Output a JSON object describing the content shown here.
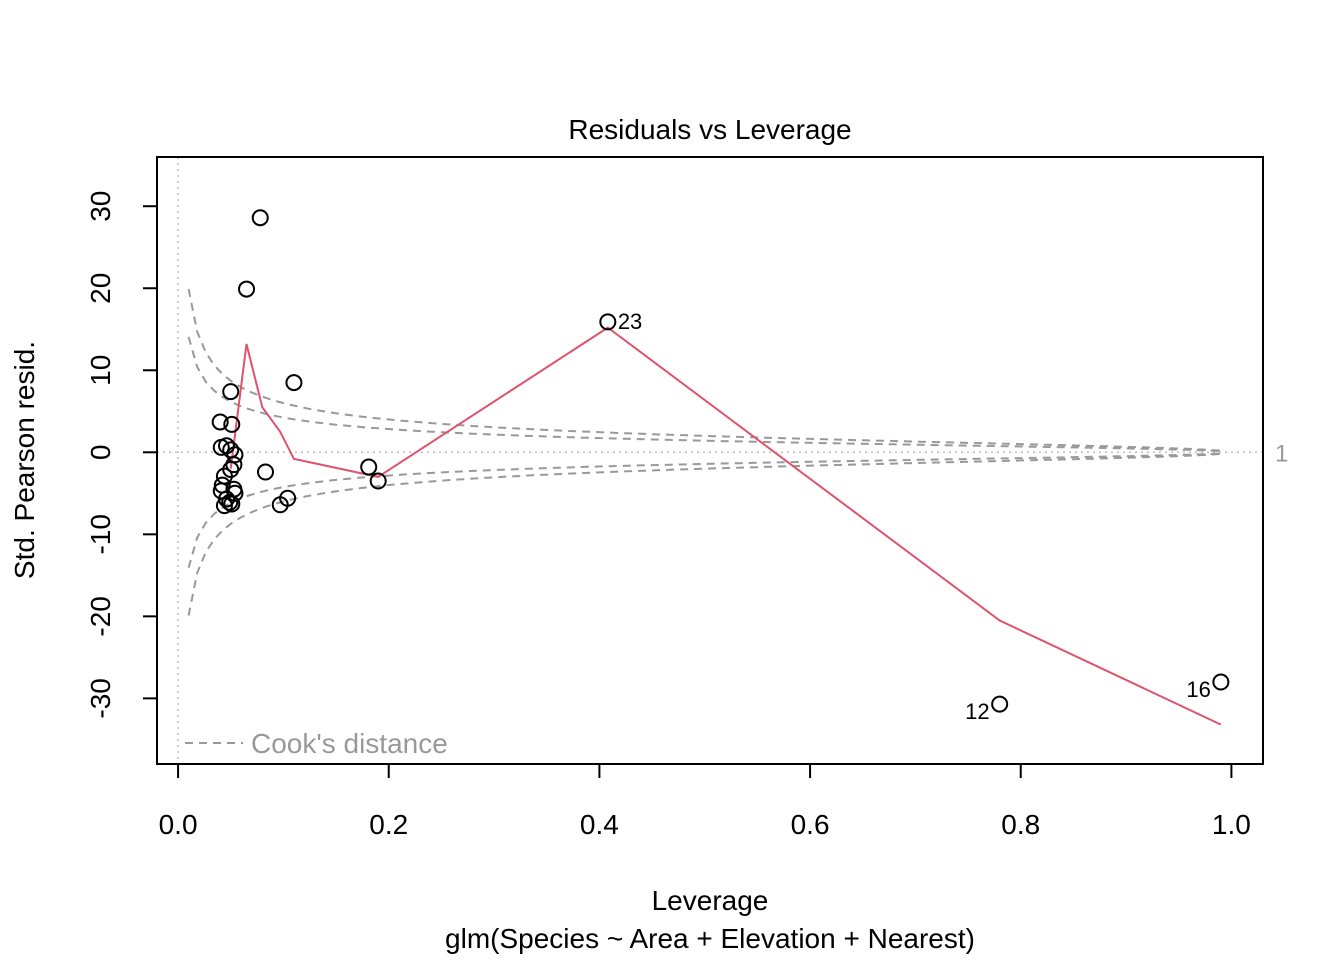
{
  "chart_data": {
    "type": "scatter",
    "title": "Residuals vs Leverage",
    "xlabel": "Leverage",
    "subtitle": "glm(Species ~ Area + Elevation + Nearest)",
    "ylabel": "Std. Pearson resid.",
    "xlim": [
      -0.02,
      1.03
    ],
    "ylim": [
      -38,
      36
    ],
    "x_ticks": [
      "0.0",
      "0.2",
      "0.4",
      "0.6",
      "0.8",
      "1.0"
    ],
    "y_ticks": [
      "-30",
      "-20",
      "-10",
      "0",
      "10",
      "20",
      "30"
    ],
    "x_tick_values": [
      0,
      0.2,
      0.4,
      0.6,
      0.8,
      1.0
    ],
    "y_tick_values": [
      -30,
      -20,
      -10,
      0,
      10,
      20,
      30
    ],
    "points": [
      {
        "x": 0.078,
        "y": 28.6,
        "label": ""
      },
      {
        "x": 0.065,
        "y": 19.9,
        "label": ""
      },
      {
        "x": 0.11,
        "y": 8.5,
        "label": ""
      },
      {
        "x": 0.05,
        "y": 7.4,
        "label": ""
      },
      {
        "x": 0.04,
        "y": 3.7,
        "label": ""
      },
      {
        "x": 0.051,
        "y": 3.4,
        "label": ""
      },
      {
        "x": 0.041,
        "y": 0.6,
        "label": ""
      },
      {
        "x": 0.046,
        "y": 0.8,
        "label": ""
      },
      {
        "x": 0.05,
        "y": 0.3,
        "label": ""
      },
      {
        "x": 0.054,
        "y": -0.3,
        "label": ""
      },
      {
        "x": 0.053,
        "y": -1.5,
        "label": ""
      },
      {
        "x": 0.05,
        "y": -2.1,
        "label": ""
      },
      {
        "x": 0.044,
        "y": -2.9,
        "label": ""
      },
      {
        "x": 0.083,
        "y": -2.4,
        "label": ""
      },
      {
        "x": 0.042,
        "y": -4.0,
        "label": ""
      },
      {
        "x": 0.041,
        "y": -4.7,
        "label": ""
      },
      {
        "x": 0.053,
        "y": -4.5,
        "label": ""
      },
      {
        "x": 0.054,
        "y": -5.0,
        "label": ""
      },
      {
        "x": 0.046,
        "y": -5.7,
        "label": ""
      },
      {
        "x": 0.049,
        "y": -6.1,
        "label": ""
      },
      {
        "x": 0.044,
        "y": -6.5,
        "label": ""
      },
      {
        "x": 0.051,
        "y": -6.3,
        "label": ""
      },
      {
        "x": 0.104,
        "y": -5.6,
        "label": ""
      },
      {
        "x": 0.097,
        "y": -6.4,
        "label": ""
      },
      {
        "x": 0.181,
        "y": -1.8,
        "label": ""
      },
      {
        "x": 0.19,
        "y": -3.5,
        "label": ""
      },
      {
        "x": 0.408,
        "y": 15.9,
        "label": "23",
        "label_side": "right"
      },
      {
        "x": 0.78,
        "y": -30.7,
        "label": "12",
        "label_side": "left"
      },
      {
        "x": 0.99,
        "y": -28.0,
        "label": "16",
        "label_side": "left"
      }
    ],
    "smoother": {
      "color": "#DF536B",
      "x": [
        0.05,
        0.065,
        0.08,
        0.097,
        0.11,
        0.19,
        0.408,
        0.78,
        0.99
      ],
      "y": [
        -2.0,
        13.2,
        5.5,
        2.5,
        -0.8,
        -3.0,
        15.2,
        -20.5,
        -33.2
      ]
    },
    "cooks_contours": {
      "color": "#999999",
      "levels": [
        0.5,
        1
      ],
      "n_params": 4,
      "leverage_range": [
        0.01,
        0.99
      ],
      "label_right": "1"
    },
    "legend": {
      "label": "Cook's distance",
      "position": "bottom-left"
    },
    "reference_lines": {
      "x": 0,
      "y": 0,
      "style": "dotted",
      "color": "#BEBEBE"
    }
  }
}
